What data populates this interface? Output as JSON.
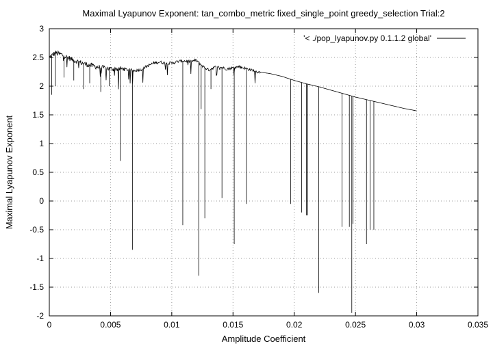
{
  "chart_data": {
    "type": "line",
    "title": "Maximal Lyapunov Exponent: tan_combo_metric fixed_single_point greedy_selection Trial:2",
    "xlabel": "Amplitude Coefficient",
    "ylabel": "Maximal Lyapunov Exponent",
    "xlim": [
      0,
      0.035
    ],
    "ylim": [
      -2,
      3
    ],
    "xticks": [
      0,
      0.005,
      0.01,
      0.015,
      0.02,
      0.025,
      0.03,
      0.035
    ],
    "xtick_labels": [
      "0",
      "0.005",
      "0.01",
      "0.015",
      "0.02",
      "0.025",
      "0.03",
      "0.035"
    ],
    "yticks": [
      -2,
      -1.5,
      -1,
      -0.5,
      0,
      0.5,
      1,
      1.5,
      2,
      2.5,
      3
    ],
    "ytick_labels": [
      "-2",
      "-1.5",
      "-1",
      "-0.5",
      "0",
      "0.5",
      "1",
      "1.5",
      "2",
      "2.5",
      "3"
    ],
    "grid": true,
    "grid_style": "dotted",
    "legend_position": "top-right",
    "series": [
      {
        "name": "'< ./pop_lyapunov.py 0.1.1.2 global'",
        "color": "#000000",
        "curve": [
          [
            0,
            2.5
          ],
          [
            0.0005,
            2.58
          ],
          [
            0.001,
            2.55
          ],
          [
            0.002,
            2.45
          ],
          [
            0.003,
            2.38
          ],
          [
            0.004,
            2.33
          ],
          [
            0.005,
            2.3
          ],
          [
            0.006,
            2.3
          ],
          [
            0.007,
            2.27
          ],
          [
            0.0075,
            2.29
          ],
          [
            0.008,
            2.35
          ],
          [
            0.0085,
            2.4
          ],
          [
            0.009,
            2.42
          ],
          [
            0.0095,
            2.4
          ],
          [
            0.01,
            2.4
          ],
          [
            0.0105,
            2.43
          ],
          [
            0.011,
            2.44
          ],
          [
            0.0115,
            2.43
          ],
          [
            0.012,
            2.45
          ],
          [
            0.0125,
            2.35
          ],
          [
            0.013,
            2.28
          ],
          [
            0.0135,
            2.33
          ],
          [
            0.014,
            2.33
          ],
          [
            0.0145,
            2.3
          ],
          [
            0.015,
            2.32
          ],
          [
            0.0155,
            2.34
          ],
          [
            0.016,
            2.31
          ],
          [
            0.0165,
            2.28
          ],
          [
            0.017,
            2.25
          ],
          [
            0.018,
            2.22
          ],
          [
            0.019,
            2.17
          ],
          [
            0.02,
            2.1
          ],
          [
            0.021,
            2.04
          ],
          [
            0.022,
            1.99
          ],
          [
            0.023,
            1.93
          ],
          [
            0.024,
            1.87
          ],
          [
            0.025,
            1.81
          ],
          [
            0.026,
            1.76
          ],
          [
            0.027,
            1.71
          ],
          [
            0.028,
            1.66
          ],
          [
            0.029,
            1.61
          ],
          [
            0.03,
            1.57
          ]
        ],
        "dips": [
          [
            0.0002,
            1.85
          ],
          [
            0.0005,
            2.0
          ],
          [
            0.0012,
            2.15
          ],
          [
            0.002,
            2.1
          ],
          [
            0.0028,
            1.95
          ],
          [
            0.0033,
            2.05
          ],
          [
            0.0042,
            1.9
          ],
          [
            0.0049,
            2.0
          ],
          [
            0.0058,
            0.7
          ],
          [
            0.0068,
            -0.85
          ],
          [
            0.0109,
            -0.42
          ],
          [
            0.0122,
            -1.3
          ],
          [
            0.0124,
            1.6
          ],
          [
            0.0127,
            -0.3
          ],
          [
            0.0132,
            1.95
          ],
          [
            0.0141,
            0.05
          ],
          [
            0.0151,
            -0.75
          ],
          [
            0.0161,
            -0.05
          ],
          [
            0.0168,
            2.2
          ],
          [
            0.0197,
            -0.05
          ],
          [
            0.0206,
            -0.2
          ],
          [
            0.021,
            -0.25
          ],
          [
            0.0211,
            -0.25
          ],
          [
            0.022,
            -1.6
          ],
          [
            0.0239,
            -0.45
          ],
          [
            0.0245,
            -0.45
          ],
          [
            0.0247,
            -1.95
          ],
          [
            0.0248,
            -0.4
          ],
          [
            0.0259,
            -0.75
          ],
          [
            0.0262,
            -0.5
          ],
          [
            0.0265,
            -0.5
          ]
        ]
      }
    ]
  }
}
